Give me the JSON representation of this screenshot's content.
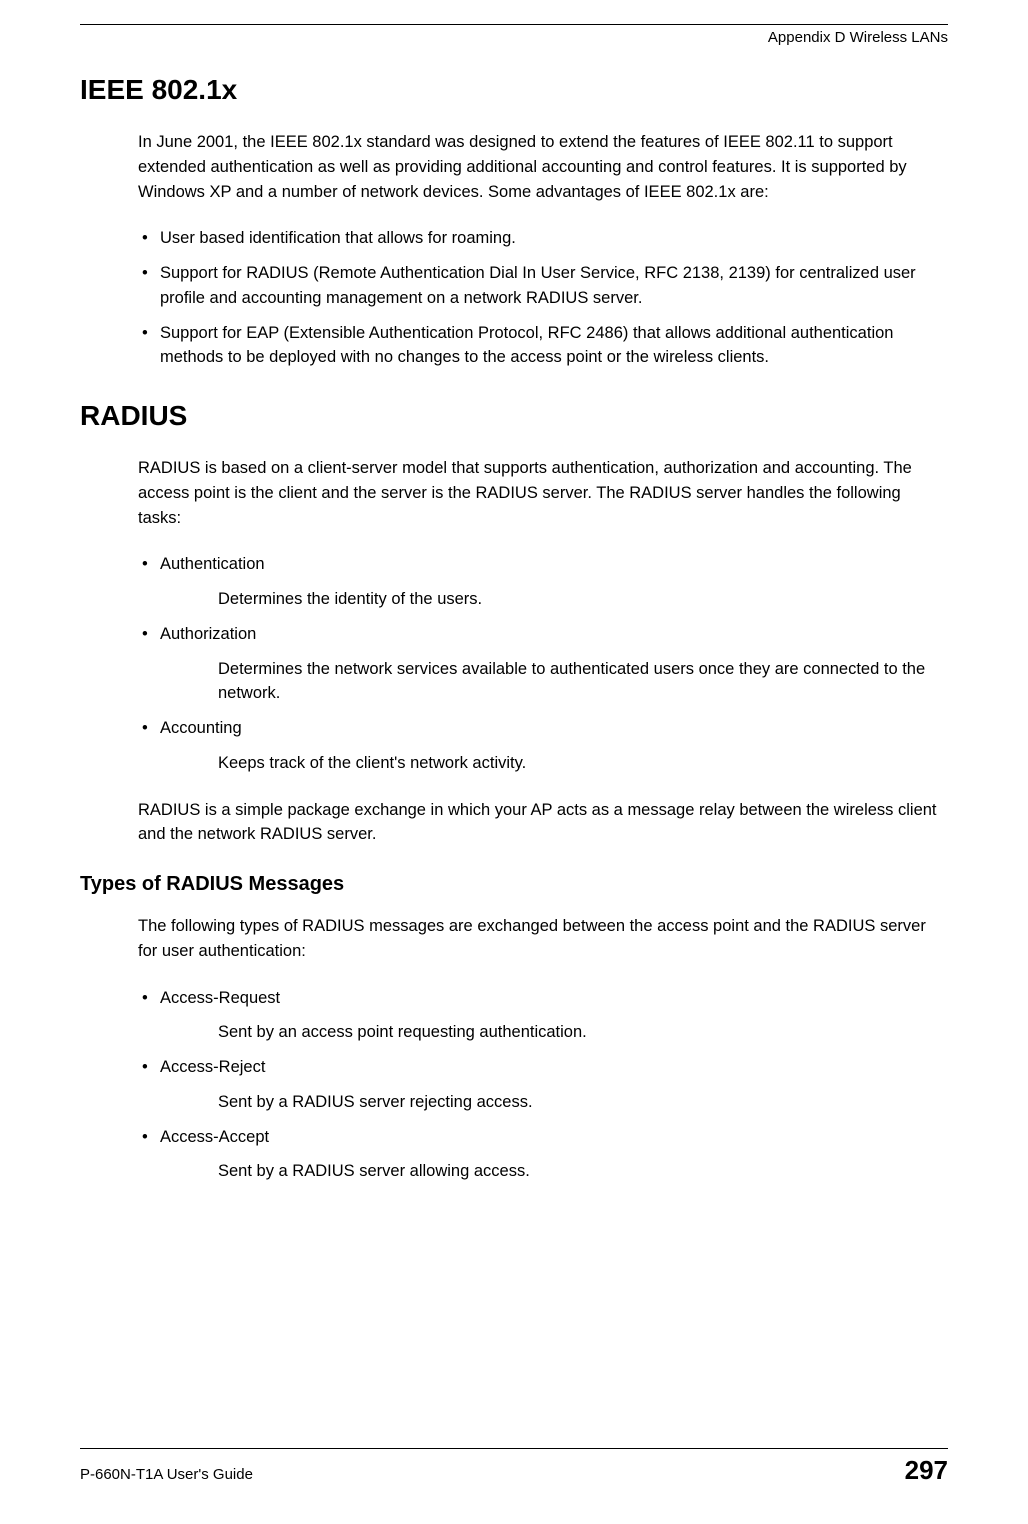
{
  "header": {
    "appendix_label": "Appendix D Wireless LANs"
  },
  "section_ieee": {
    "title": "IEEE 802.1x",
    "intro": "In June 2001, the IEEE 802.1x standard was designed to extend the features of IEEE 802.11 to support extended authentication as well as providing additional accounting and control features. It is supported by Windows XP and a number of network devices. Some advantages of IEEE 802.1x are:",
    "bullets": [
      "User based identification that allows for roaming.",
      "Support for RADIUS (Remote Authentication Dial In User Service, RFC 2138, 2139) for centralized user profile and accounting management on a network RADIUS server.",
      "Support for EAP (Extensible Authentication Protocol, RFC 2486) that allows additional authentication methods to be deployed with no changes to the access point or the wireless clients."
    ]
  },
  "section_radius": {
    "title": "RADIUS",
    "intro": "RADIUS is based on a client-server model that supports authentication, authorization and accounting. The access point is the client and the server is the RADIUS server. The RADIUS server handles the following tasks:",
    "items": [
      {
        "term": "Authentication",
        "desc": "Determines the identity of the users."
      },
      {
        "term": "Authorization",
        "desc": "Determines the network services available to authenticated users once they are connected to the network."
      },
      {
        "term": "Accounting",
        "desc": "Keeps track of the client's network activity."
      }
    ],
    "outro": "RADIUS is a simple package exchange in which your AP acts as a message relay between the wireless client and the network RADIUS server."
  },
  "section_types": {
    "title": "Types of RADIUS Messages",
    "intro": "The following types of RADIUS messages are exchanged between the access point and the RADIUS server for user authentication:",
    "items": [
      {
        "term": "Access-Request",
        "desc": "Sent by an access point requesting authentication."
      },
      {
        "term": "Access-Reject",
        "desc": "Sent by a RADIUS server rejecting access."
      },
      {
        "term": "Access-Accept",
        "desc": "Sent by a RADIUS server allowing access."
      }
    ]
  },
  "footer": {
    "guide_label": "P-660N-T1A User's Guide",
    "page_number": "297"
  }
}
